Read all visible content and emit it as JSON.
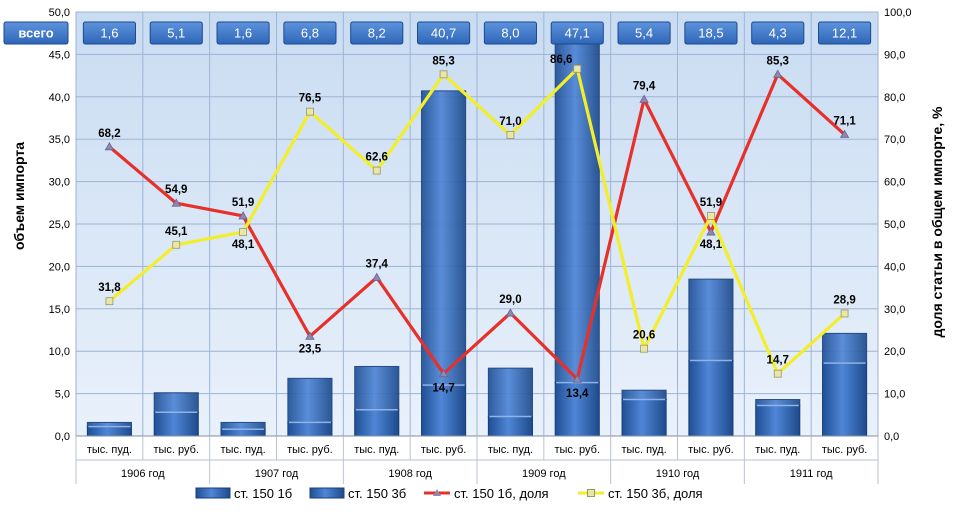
{
  "chart_data": {
    "type": "bar",
    "title": "",
    "ylabel": "объем импорта",
    "y2label": "доля статьи в общем импорте, %",
    "ylim": [
      0,
      50
    ],
    "y2lim": [
      0,
      100
    ],
    "yticks": [
      "0,0",
      "5,0",
      "10,0",
      "15,0",
      "20,0",
      "25,0",
      "30,0",
      "35,0",
      "40,0",
      "45,0",
      "50,0"
    ],
    "y2ticks": [
      "0,0",
      "10,0",
      "20,0",
      "30,0",
      "40,0",
      "50,0",
      "60,0",
      "70,0",
      "80,0",
      "90,0",
      "100,0"
    ],
    "grid": true,
    "categories": [
      "тыс. пуд.",
      "тыс. руб.",
      "тыс. пуд.",
      "тыс. руб.",
      "тыс. пуд.",
      "тыс. руб.",
      "тыс. пуд.",
      "тыс. руб.",
      "тыс. пуд.",
      "тыс. руб.",
      "тыс. пуд.",
      "тыс. руб."
    ],
    "groups": [
      "1906 год",
      "1907 год",
      "1908 год",
      "1909 год",
      "1910 год",
      "1911 год"
    ],
    "totals_label": "всего",
    "totals": [
      "1,6",
      "5,1",
      "1,6",
      "6,8",
      "8,2",
      "40,7",
      "8,0",
      "47,1",
      "5,4",
      "18,5",
      "4,3",
      "12,1"
    ],
    "totals_values": [
      1.6,
      5.1,
      1.6,
      6.8,
      8.2,
      40.7,
      8.0,
      47.1,
      5.4,
      18.5,
      4.3,
      12.1
    ],
    "series": [
      {
        "name": "ст. 150 1б",
        "kind": "bar",
        "color": "#2e64b4",
        "values": [
          1.1,
          2.8,
          0.8,
          1.6,
          3.1,
          6.0,
          2.3,
          6.3,
          4.3,
          8.9,
          3.6,
          8.6
        ]
      },
      {
        "name": "ст. 150 3б",
        "kind": "bar",
        "color": "#4f86d6",
        "values": [
          0.5,
          2.3,
          0.8,
          5.2,
          5.1,
          34.7,
          5.7,
          40.8,
          1.1,
          9.6,
          0.7,
          3.5
        ]
      },
      {
        "name": "ст. 150 1б, доля",
        "kind": "line",
        "axis": "right",
        "color": "#e8302a",
        "values": [
          68.2,
          54.9,
          51.9,
          23.5,
          37.4,
          14.7,
          29.0,
          13.4,
          79.4,
          48.1,
          85.3,
          71.1
        ],
        "labels": [
          "68,2",
          "54,9",
          "51,9",
          "23,5",
          "37,4",
          "14,7",
          "29,0",
          "13,4",
          "79,4",
          "48,1",
          "85,3",
          "71,1"
        ]
      },
      {
        "name": "ст. 150 3б, доля",
        "kind": "line",
        "axis": "right",
        "color": "#f2ee2a",
        "values": [
          31.8,
          45.1,
          48.1,
          76.5,
          62.6,
          85.3,
          71.0,
          86.6,
          20.6,
          51.9,
          14.7,
          28.9
        ],
        "labels": [
          "31,8",
          "45,1",
          "48,1",
          "76,5",
          "62,6",
          "85,3",
          "71,0",
          "86,6",
          "20,6",
          "51,9",
          "14,7",
          "28,9"
        ]
      }
    ],
    "legend": "bottom"
  }
}
